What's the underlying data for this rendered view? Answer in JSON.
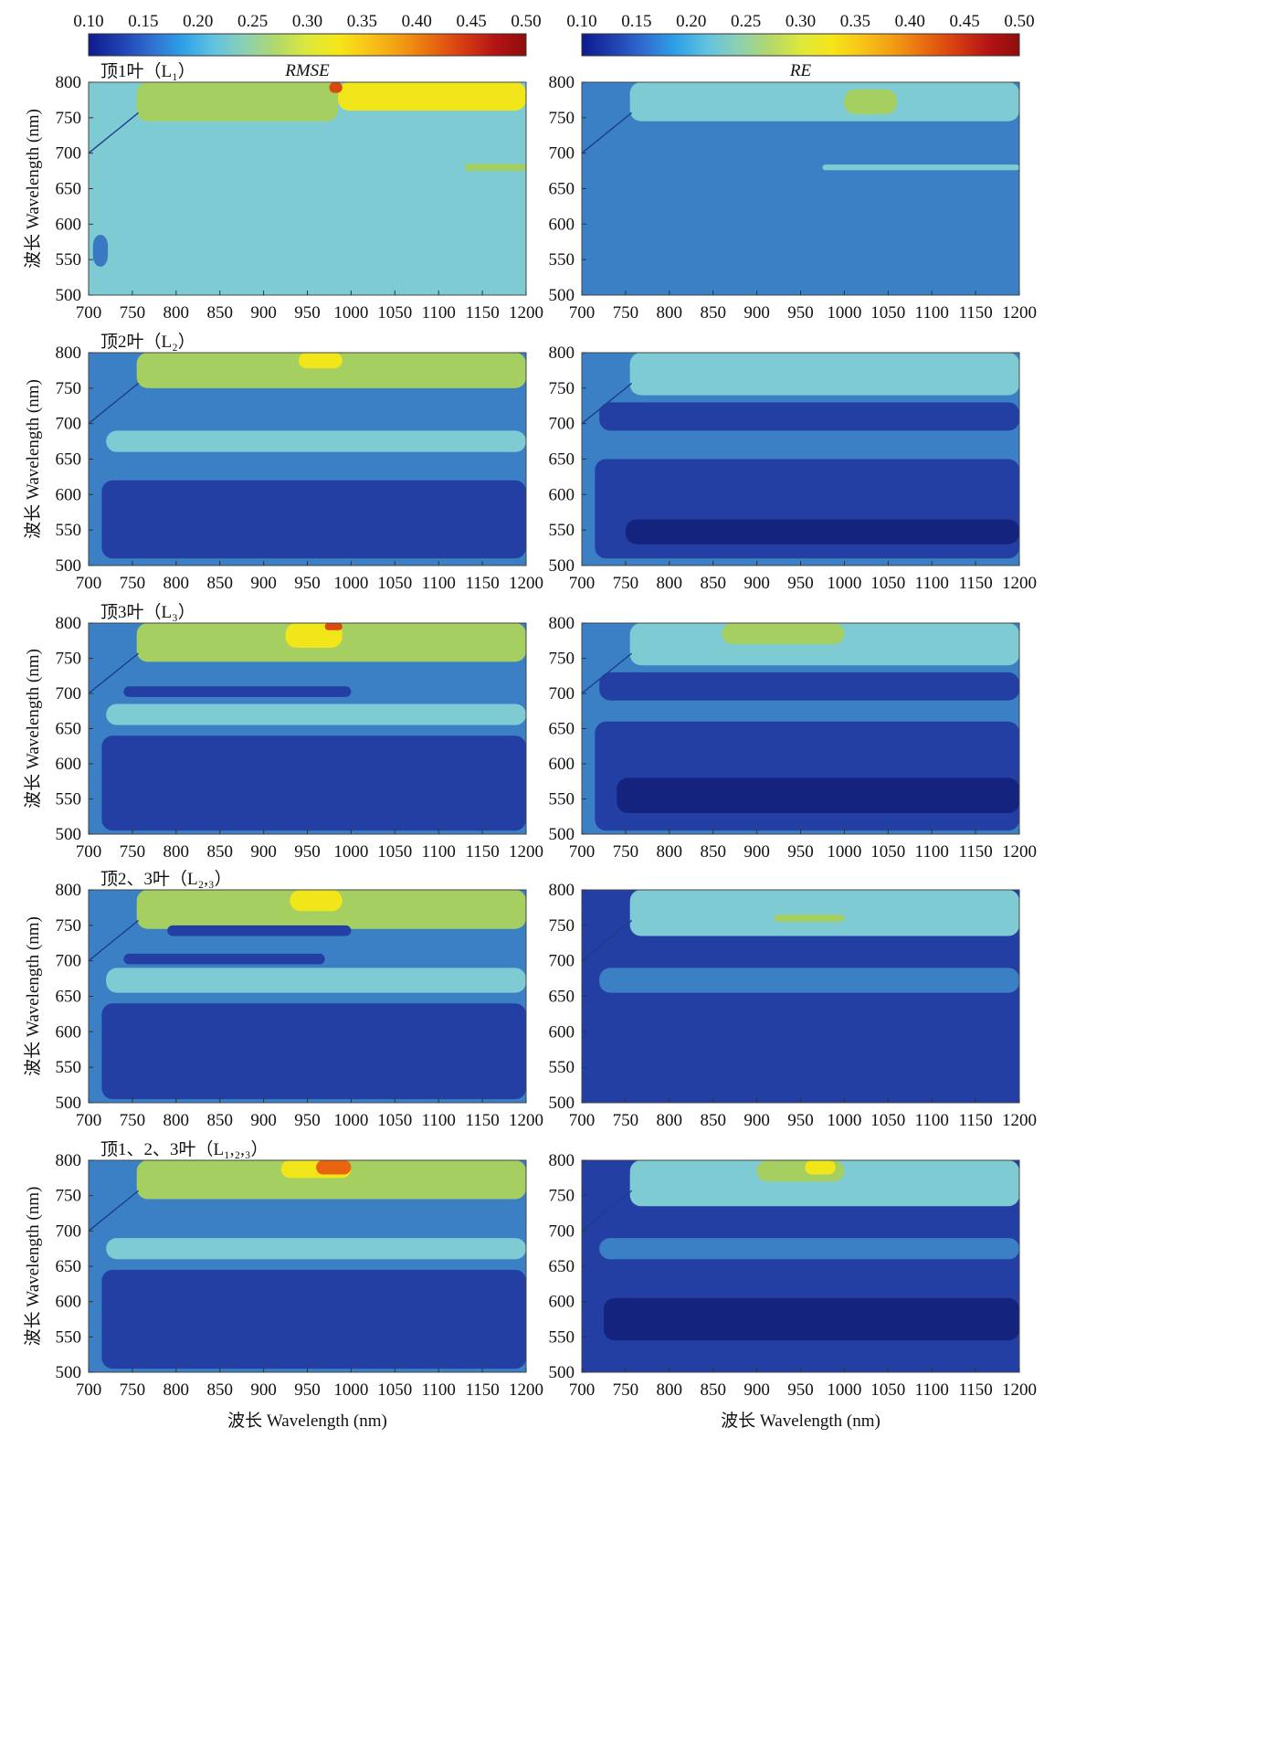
{
  "chart_data": {
    "type": "heatmap",
    "colorbar": {
      "ticks": [
        "0.10",
        "0.15",
        "0.20",
        "0.25",
        "0.30",
        "0.35",
        "0.40",
        "0.45",
        "0.50"
      ],
      "range": [
        0.1,
        0.5
      ],
      "colormap": [
        "#0d1a8c",
        "#1f3fb0",
        "#2f6ed0",
        "#2fa0e6",
        "#62c2e0",
        "#8cd0b4",
        "#b2d86c",
        "#dde83a",
        "#f6e619",
        "#f8c218",
        "#f29b14",
        "#e86a10",
        "#d63b12",
        "#b41414",
        "#8e0d0d"
      ]
    },
    "xlabel": "波长 Wavelength (nm)",
    "ylabel": "波长 Wavelength (nm)",
    "x_ticks": [
      "700",
      "750",
      "800",
      "850",
      "900",
      "950",
      "1000",
      "1050",
      "1100",
      "1150",
      "1200"
    ],
    "y_ticks": [
      "800",
      "750",
      "700",
      "650",
      "600",
      "550",
      "500"
    ],
    "xlim": [
      700,
      1200
    ],
    "ylim": [
      500,
      800
    ],
    "column_titles": [
      "RMSE",
      "RE"
    ],
    "row_labels": [
      "顶1叶（L₁）",
      "顶2叶（L₂）",
      "顶3叶（L₃）",
      "顶2、3叶（L₂,₃）",
      "顶1、2、3叶（L₁,₂,₃）"
    ],
    "panels": [
      {
        "row": 0,
        "metric": "RMSE",
        "base": "#7ecbd3",
        "regions": [
          {
            "c": "#7ecbd3",
            "x": [
              750,
              1200
            ],
            "y": [
              500,
              730
            ]
          },
          {
            "c": "#a6cf62",
            "x": [
              755,
              985
            ],
            "y": [
              745,
              800
            ]
          },
          {
            "c": "#f1e619",
            "x": [
              985,
              1200
            ],
            "y": [
              760,
              800
            ]
          },
          {
            "c": "#d94a10",
            "x": [
              975,
              990
            ],
            "y": [
              785,
              800
            ]
          },
          {
            "c": "#3a79c2",
            "x": [
              705,
              722
            ],
            "y": [
              540,
              585
            ]
          },
          {
            "c": "#a6cf62",
            "x": [
              1130,
              1200
            ],
            "y": [
              675,
              685
            ]
          }
        ]
      },
      {
        "row": 0,
        "metric": "RE",
        "base": "#3b80c4",
        "regions": [
          {
            "c": "#7ecbd3",
            "x": [
              755,
              1200
            ],
            "y": [
              745,
              800
            ]
          },
          {
            "c": "#a6cf62",
            "x": [
              1000,
              1060
            ],
            "y": [
              755,
              790
            ]
          },
          {
            "c": "#7ecbd3",
            "x": [
              975,
              1200
            ],
            "y": [
              676,
              684
            ]
          }
        ]
      },
      {
        "row": 1,
        "metric": "RMSE",
        "base": "#3b80c4",
        "regions": [
          {
            "c": "#a6cf62",
            "x": [
              755,
              1200
            ],
            "y": [
              750,
              800
            ]
          },
          {
            "c": "#f1e619",
            "x": [
              940,
              990
            ],
            "y": [
              778,
              800
            ]
          },
          {
            "c": "#7ecbd3",
            "x": [
              720,
              1200
            ],
            "y": [
              660,
              690
            ]
          },
          {
            "c": "#243fa4",
            "x": [
              715,
              1200
            ],
            "y": [
              510,
              620
            ]
          }
        ]
      },
      {
        "row": 1,
        "metric": "RE",
        "base": "#3b80c4",
        "regions": [
          {
            "c": "#7ecbd3",
            "x": [
              755,
              1200
            ],
            "y": [
              740,
              800
            ]
          },
          {
            "c": "#243fa4",
            "x": [
              720,
              1200
            ],
            "y": [
              690,
              730
            ]
          },
          {
            "c": "#243fa4",
            "x": [
              715,
              1200
            ],
            "y": [
              510,
              650
            ]
          },
          {
            "c": "#14247e",
            "x": [
              750,
              1200
            ],
            "y": [
              530,
              565
            ]
          }
        ]
      },
      {
        "row": 2,
        "metric": "RMSE",
        "base": "#3b80c4",
        "regions": [
          {
            "c": "#a6cf62",
            "x": [
              755,
              1200
            ],
            "y": [
              745,
              800
            ]
          },
          {
            "c": "#f1e619",
            "x": [
              925,
              990
            ],
            "y": [
              765,
              800
            ]
          },
          {
            "c": "#d94a10",
            "x": [
              970,
              990
            ],
            "y": [
              790,
              800
            ]
          },
          {
            "c": "#7ecbd3",
            "x": [
              720,
              1200
            ],
            "y": [
              655,
              685
            ]
          },
          {
            "c": "#243fa4",
            "x": [
              740,
              1000
            ],
            "y": [
              695,
              710
            ]
          },
          {
            "c": "#243fa4",
            "x": [
              715,
              1200
            ],
            "y": [
              505,
              640
            ]
          }
        ]
      },
      {
        "row": 2,
        "metric": "RE",
        "base": "#3b80c4",
        "regions": [
          {
            "c": "#7ecbd3",
            "x": [
              755,
              1200
            ],
            "y": [
              740,
              800
            ]
          },
          {
            "c": "#a6cf62",
            "x": [
              860,
              1000
            ],
            "y": [
              770,
              800
            ]
          },
          {
            "c": "#243fa4",
            "x": [
              720,
              1200
            ],
            "y": [
              690,
              730
            ]
          },
          {
            "c": "#243fa4",
            "x": [
              715,
              1200
            ],
            "y": [
              505,
              660
            ]
          },
          {
            "c": "#14247e",
            "x": [
              740,
              1200
            ],
            "y": [
              530,
              580
            ]
          }
        ]
      },
      {
        "row": 3,
        "metric": "RMSE",
        "base": "#3b80c4",
        "regions": [
          {
            "c": "#a6cf62",
            "x": [
              755,
              1200
            ],
            "y": [
              745,
              800
            ]
          },
          {
            "c": "#f1e619",
            "x": [
              930,
              990
            ],
            "y": [
              770,
              800
            ]
          },
          {
            "c": "#7ecbd3",
            "x": [
              720,
              1200
            ],
            "y": [
              655,
              690
            ]
          },
          {
            "c": "#243fa4",
            "x": [
              790,
              1000
            ],
            "y": [
              735,
              750
            ]
          },
          {
            "c": "#243fa4",
            "x": [
              740,
              970
            ],
            "y": [
              695,
              710
            ]
          },
          {
            "c": "#243fa4",
            "x": [
              715,
              1200
            ],
            "y": [
              505,
              640
            ]
          }
        ]
      },
      {
        "row": 3,
        "metric": "RE",
        "base": "#243fa4",
        "regions": [
          {
            "c": "#7ecbd3",
            "x": [
              755,
              1200
            ],
            "y": [
              735,
              800
            ]
          },
          {
            "c": "#a6cf62",
            "x": [
              920,
              1000
            ],
            "y": [
              755,
              765
            ]
          },
          {
            "c": "#3b80c4",
            "x": [
              720,
              1200
            ],
            "y": [
              655,
              690
            ]
          },
          {
            "c": "#243fa4",
            "x": [
              720,
              1200
            ],
            "y": [
              520,
              600
            ]
          }
        ]
      },
      {
        "row": 4,
        "metric": "RMSE",
        "base": "#3b80c4",
        "regions": [
          {
            "c": "#a6cf62",
            "x": [
              755,
              1200
            ],
            "y": [
              745,
              800
            ]
          },
          {
            "c": "#f1e619",
            "x": [
              920,
              1000
            ],
            "y": [
              775,
              800
            ]
          },
          {
            "c": "#e8640e",
            "x": [
              960,
              1000
            ],
            "y": [
              780,
              800
            ]
          },
          {
            "c": "#7ecbd3",
            "x": [
              720,
              1200
            ],
            "y": [
              660,
              690
            ]
          },
          {
            "c": "#243fa4",
            "x": [
              715,
              1200
            ],
            "y": [
              505,
              645
            ]
          }
        ]
      },
      {
        "row": 4,
        "metric": "RE",
        "base": "#243fa4",
        "regions": [
          {
            "c": "#7ecbd3",
            "x": [
              755,
              1200
            ],
            "y": [
              735,
              800
            ]
          },
          {
            "c": "#a6cf62",
            "x": [
              900,
              1000
            ],
            "y": [
              770,
              800
            ]
          },
          {
            "c": "#f1e619",
            "x": [
              955,
              990
            ],
            "y": [
              780,
              800
            ]
          },
          {
            "c": "#3b80c4",
            "x": [
              720,
              1200
            ],
            "y": [
              660,
              690
            ]
          },
          {
            "c": "#14247e",
            "x": [
              725,
              1200
            ],
            "y": [
              545,
              605
            ]
          }
        ]
      }
    ]
  }
}
